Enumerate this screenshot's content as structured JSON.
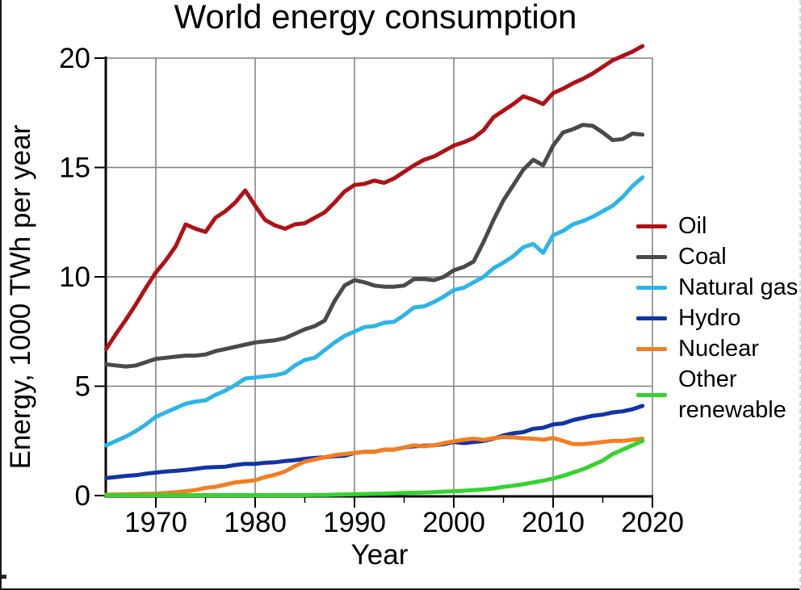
{
  "page": {
    "background": "#ffffff"
  },
  "chart_data": {
    "type": "line",
    "title": "World energy consumption",
    "xlabel": "Year",
    "ylabel": "Energy, 1000 TWh per year",
    "x_range": [
      1965,
      2020
    ],
    "y_range": [
      0,
      20
    ],
    "x_ticks_major": [
      1970,
      1980,
      1990,
      2000,
      2010,
      2020
    ],
    "x_ticks_minor": [
      1975,
      1985,
      1995,
      2005,
      2015
    ],
    "y_ticks": [
      0,
      5,
      10,
      15,
      20
    ],
    "grid": true,
    "legend_position": "right",
    "axis_color": "#000000",
    "grid_color": "#7f7f7f",
    "x": [
      1965,
      1966,
      1967,
      1968,
      1969,
      1970,
      1971,
      1972,
      1973,
      1974,
      1975,
      1976,
      1977,
      1978,
      1979,
      1980,
      1981,
      1982,
      1983,
      1984,
      1985,
      1986,
      1987,
      1988,
      1989,
      1990,
      1991,
      1992,
      1993,
      1994,
      1995,
      1996,
      1997,
      1998,
      1999,
      2000,
      2001,
      2002,
      2003,
      2004,
      2005,
      2006,
      2007,
      2008,
      2009,
      2010,
      2011,
      2012,
      2013,
      2014,
      2015,
      2016,
      2017,
      2018,
      2019
    ],
    "series": [
      {
        "name": "Oil",
        "legend_label": "Oil",
        "color": "#b01117",
        "values": [
          6.7,
          7.4,
          8.05,
          8.75,
          9.5,
          10.2,
          10.75,
          11.4,
          12.4,
          12.2,
          12.05,
          12.7,
          13.0,
          13.4,
          13.95,
          13.25,
          12.6,
          12.35,
          12.2,
          12.4,
          12.45,
          12.7,
          12.95,
          13.4,
          13.9,
          14.2,
          14.25,
          14.4,
          14.3,
          14.5,
          14.8,
          15.1,
          15.35,
          15.5,
          15.75,
          16.0,
          16.15,
          16.35,
          16.7,
          17.3,
          17.6,
          17.9,
          18.25,
          18.1,
          17.9,
          18.4,
          18.6,
          18.85,
          19.05,
          19.3,
          19.6,
          19.9,
          20.1,
          20.3,
          20.55
        ]
      },
      {
        "name": "Coal",
        "legend_label": "Coal",
        "color": "#4a4a4a",
        "values": [
          6.0,
          5.95,
          5.9,
          5.95,
          6.1,
          6.25,
          6.3,
          6.35,
          6.4,
          6.4,
          6.45,
          6.6,
          6.7,
          6.8,
          6.9,
          7.0,
          7.05,
          7.1,
          7.2,
          7.4,
          7.6,
          7.75,
          8.0,
          8.9,
          9.6,
          9.85,
          9.75,
          9.6,
          9.55,
          9.55,
          9.6,
          9.9,
          9.9,
          9.85,
          10.0,
          10.3,
          10.45,
          10.7,
          11.6,
          12.6,
          13.5,
          14.2,
          14.9,
          15.35,
          15.1,
          16.0,
          16.6,
          16.75,
          16.95,
          16.9,
          16.6,
          16.25,
          16.3,
          16.55,
          16.5
        ]
      },
      {
        "name": "Natural gas",
        "legend_label": "Natural gas",
        "color": "#2cb5e8",
        "values": [
          2.3,
          2.5,
          2.7,
          2.95,
          3.25,
          3.6,
          3.8,
          4.0,
          4.2,
          4.3,
          4.35,
          4.6,
          4.8,
          5.05,
          5.35,
          5.4,
          5.45,
          5.5,
          5.6,
          5.95,
          6.2,
          6.3,
          6.65,
          7.0,
          7.3,
          7.5,
          7.7,
          7.75,
          7.9,
          7.95,
          8.25,
          8.6,
          8.65,
          8.85,
          9.1,
          9.4,
          9.5,
          9.75,
          10.0,
          10.4,
          10.65,
          10.95,
          11.35,
          11.5,
          11.1,
          11.9,
          12.1,
          12.4,
          12.55,
          12.75,
          13.0,
          13.25,
          13.65,
          14.15,
          14.55
        ]
      },
      {
        "name": "Hydro",
        "legend_label": "Hydro",
        "color": "#1134a6",
        "values": [
          0.8,
          0.85,
          0.9,
          0.93,
          1.0,
          1.05,
          1.1,
          1.13,
          1.17,
          1.22,
          1.28,
          1.3,
          1.32,
          1.4,
          1.45,
          1.45,
          1.5,
          1.52,
          1.58,
          1.62,
          1.68,
          1.72,
          1.75,
          1.8,
          1.82,
          1.95,
          2.0,
          2.0,
          2.1,
          2.1,
          2.2,
          2.25,
          2.28,
          2.3,
          2.35,
          2.45,
          2.4,
          2.45,
          2.5,
          2.6,
          2.75,
          2.85,
          2.9,
          3.05,
          3.1,
          3.25,
          3.3,
          3.45,
          3.55,
          3.65,
          3.7,
          3.8,
          3.85,
          3.95,
          4.1
        ]
      },
      {
        "name": "Nuclear",
        "legend_label": "Nuclear",
        "color": "#f57d20",
        "values": [
          0.04,
          0.05,
          0.06,
          0.07,
          0.08,
          0.09,
          0.12,
          0.15,
          0.2,
          0.25,
          0.35,
          0.4,
          0.5,
          0.6,
          0.65,
          0.7,
          0.85,
          0.95,
          1.1,
          1.35,
          1.55,
          1.65,
          1.75,
          1.85,
          1.9,
          1.95,
          2.0,
          2.0,
          2.1,
          2.1,
          2.2,
          2.3,
          2.25,
          2.3,
          2.4,
          2.48,
          2.55,
          2.6,
          2.55,
          2.62,
          2.68,
          2.66,
          2.62,
          2.6,
          2.55,
          2.63,
          2.5,
          2.35,
          2.35,
          2.4,
          2.45,
          2.5,
          2.5,
          2.55,
          2.6
        ]
      },
      {
        "name": "Other renewable",
        "legend_label": "Other renewable",
        "color": "#33d42e",
        "values": [
          0.02,
          0.02,
          0.02,
          0.02,
          0.02,
          0.02,
          0.02,
          0.02,
          0.02,
          0.02,
          0.02,
          0.02,
          0.02,
          0.02,
          0.02,
          0.02,
          0.02,
          0.02,
          0.02,
          0.02,
          0.02,
          0.03,
          0.03,
          0.04,
          0.05,
          0.06,
          0.07,
          0.08,
          0.09,
          0.1,
          0.12,
          0.13,
          0.14,
          0.16,
          0.18,
          0.2,
          0.22,
          0.25,
          0.28,
          0.33,
          0.4,
          0.45,
          0.52,
          0.6,
          0.68,
          0.78,
          0.9,
          1.05,
          1.2,
          1.4,
          1.6,
          1.9,
          2.1,
          2.3,
          2.5
        ]
      }
    ]
  }
}
